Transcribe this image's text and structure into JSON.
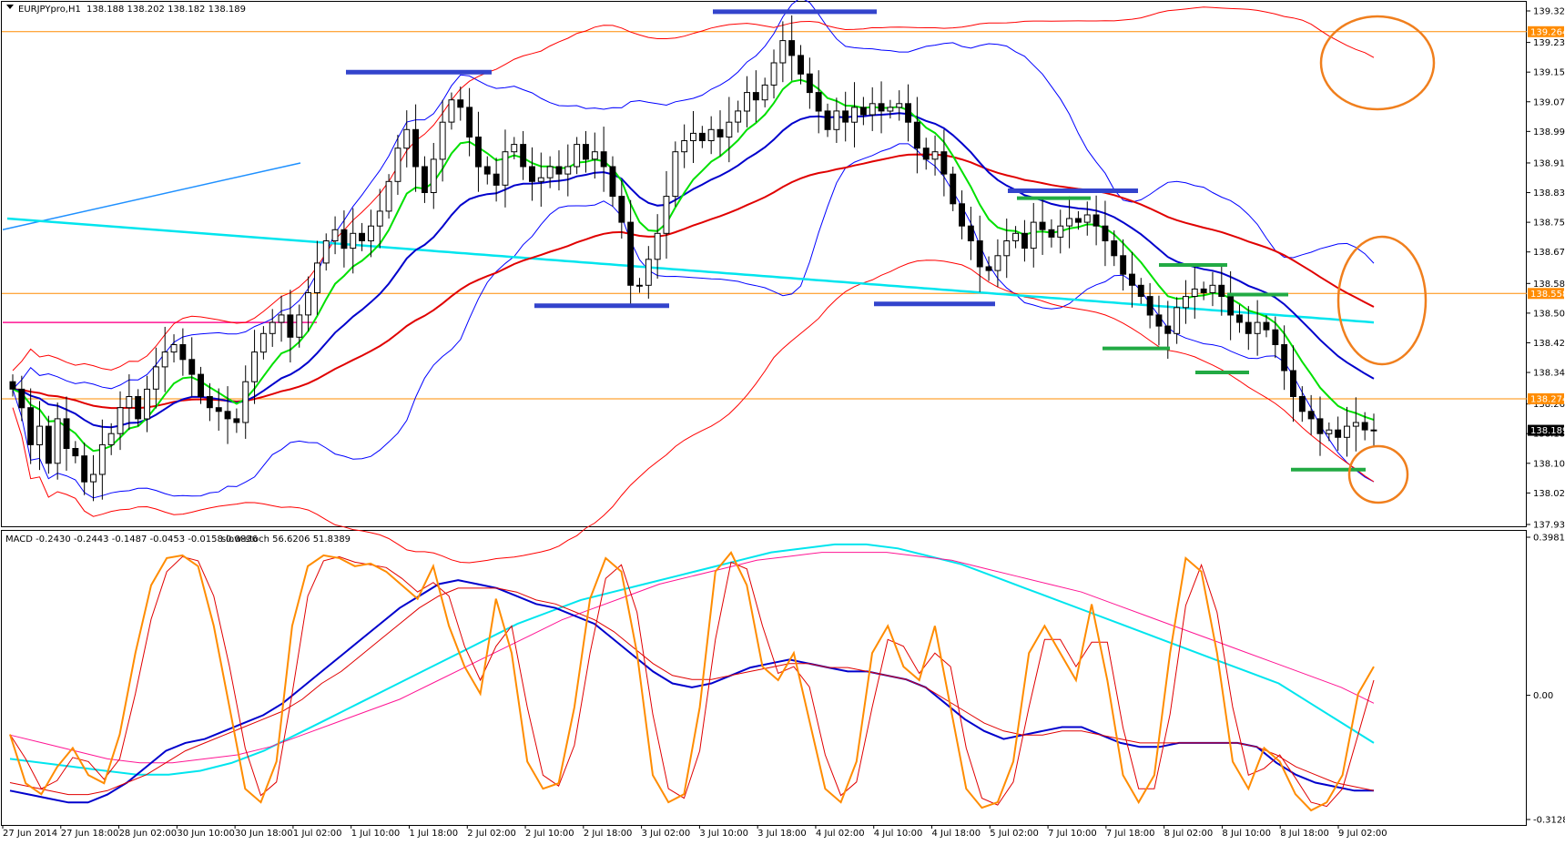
{
  "header": {
    "symbol_label": "EURJPYpro,H1",
    "ohlc": "138.188 138.202 138.182 138.189",
    "macd_label": "MACD -0.2430 -0.2443 -0.1487 -0.0453 -0.0158 0.0836",
    "stoch_label": "slow-stoch 56.6206 51.8389"
  },
  "colors": {
    "bg": "#ffffff",
    "grid_frame": "#000000",
    "candle": "#000000",
    "ema_fast": "#00e000",
    "ema_mid": "#0000cc",
    "ema_slow": "#e00000",
    "sma_long": "#00e5ee",
    "bollinger_inner": "#0000ff",
    "bollinger_outer": "#ff0000",
    "trendline": "#1e90ff",
    "magenta_line": "#ff1493",
    "hline": "#ff8c00",
    "resist_bar": "#3344cc",
    "support_bar": "#22aa44",
    "circle": "#f07f1d",
    "macd_main": "#0000cc",
    "macd_signal": "#e00000",
    "macd_slow": "#00e5ee",
    "macd_slow_sig": "#ff1493",
    "stoch_main": "#ff8c00",
    "stoch_sig": "#e00000"
  },
  "chart_data": {
    "type": "candlestick",
    "price_axis": {
      "ylim": [
        137.935,
        139.32
      ],
      "ticks": [
        "139.320",
        "139.235",
        "139.155",
        "139.075",
        "138.995",
        "138.910",
        "138.830",
        "138.750",
        "138.670",
        "138.585",
        "138.505",
        "138.425",
        "138.345",
        "138.260",
        "138.180",
        "138.100",
        "138.020",
        "137.935"
      ]
    },
    "price_labels": [
      {
        "text": "139.264",
        "value": 139.264,
        "style": "hline"
      },
      {
        "text": "138.558",
        "value": 138.558,
        "style": "hline"
      },
      {
        "text": "138.274",
        "value": 138.274,
        "style": "hline"
      },
      {
        "text": "138.189",
        "value": 138.189,
        "style": "current"
      }
    ],
    "horizontal_lines": [
      139.264,
      138.558,
      138.274
    ],
    "x_ticks": [
      "27 Jun 2014",
      "27 Jun 18:00",
      "28 Jun 02:00",
      "30 Jun 10:00",
      "30 Jun 18:00",
      "1 Jul 02:00",
      "1 Jul 10:00",
      "1 Jul 18:00",
      "2 Jul 02:00",
      "2 Jul 10:00",
      "2 Jul 18:00",
      "3 Jul 02:00",
      "3 Jul 10:00",
      "3 Jul 18:00",
      "4 Jul 02:00",
      "4 Jul 10:00",
      "4 Jul 18:00",
      "5 Jul 02:00",
      "7 Jul 10:00",
      "7 Jul 18:00",
      "8 Jul 02:00",
      "8 Jul 10:00",
      "8 Jul 18:00",
      "9 Jul 02:00"
    ],
    "close": [
      138.3,
      138.25,
      138.15,
      138.2,
      138.1,
      138.22,
      138.14,
      138.12,
      138.05,
      138.07,
      138.15,
      138.18,
      138.25,
      138.28,
      138.22,
      138.3,
      138.36,
      138.4,
      138.42,
      138.38,
      138.34,
      138.28,
      138.25,
      138.24,
      138.22,
      138.21,
      138.32,
      138.4,
      138.45,
      138.48,
      138.5,
      138.44,
      138.5,
      138.56,
      138.64,
      138.7,
      138.73,
      138.68,
      138.72,
      138.7,
      138.74,
      138.78,
      138.86,
      138.95,
      139.0,
      138.9,
      138.83,
      138.92,
      139.02,
      139.08,
      139.06,
      138.98,
      138.9,
      138.88,
      138.85,
      138.94,
      138.96,
      138.9,
      138.86,
      138.87,
      138.9,
      138.88,
      138.9,
      138.96,
      138.92,
      138.94,
      138.9,
      138.82,
      138.75,
      138.58,
      138.58,
      138.65,
      138.72,
      138.82,
      138.94,
      138.97,
      138.99,
      138.97,
      139.0,
      138.98,
      139.02,
      139.05,
      139.1,
      139.08,
      139.12,
      139.18,
      139.24,
      139.2,
      139.15,
      139.1,
      139.05,
      139.0,
      139.05,
      139.02,
      139.06,
      139.04,
      139.07,
      139.05,
      139.06,
      139.07,
      139.02,
      138.95,
      138.92,
      138.94,
      138.88,
      138.8,
      138.74,
      138.7,
      138.63,
      138.62,
      138.66,
      138.7,
      138.72,
      138.68,
      138.75,
      138.73,
      138.71,
      138.74,
      138.76,
      138.75,
      138.77,
      138.74,
      138.7,
      138.66,
      138.61,
      138.58,
      138.55,
      138.5,
      138.47,
      138.45,
      138.52,
      138.55,
      138.57,
      138.56,
      138.58,
      138.55,
      138.5,
      138.48,
      138.45,
      138.48,
      138.46,
      138.42,
      138.35,
      138.28,
      138.24,
      138.22,
      138.18,
      138.19,
      138.17,
      138.2,
      138.21,
      138.19,
      138.189
    ],
    "macd_axis": {
      "ylim": [
        -0.3128,
        0.3981
      ],
      "ticks": [
        "0.3981",
        "0.00",
        "-0.3128"
      ]
    },
    "macd": [
      -0.24,
      -0.25,
      -0.26,
      -0.27,
      -0.27,
      -0.25,
      -0.22,
      -0.18,
      -0.14,
      -0.12,
      -0.11,
      -0.09,
      -0.07,
      -0.05,
      -0.02,
      0.02,
      0.06,
      0.1,
      0.14,
      0.18,
      0.22,
      0.25,
      0.28,
      0.29,
      0.28,
      0.27,
      0.25,
      0.23,
      0.22,
      0.2,
      0.18,
      0.14,
      0.1,
      0.06,
      0.03,
      0.02,
      0.03,
      0.05,
      0.07,
      0.08,
      0.09,
      0.08,
      0.07,
      0.06,
      0.06,
      0.05,
      0.04,
      0.02,
      -0.02,
      -0.06,
      -0.09,
      -0.11,
      -0.1,
      -0.09,
      -0.08,
      -0.08,
      -0.1,
      -0.12,
      -0.13,
      -0.13,
      -0.12,
      -0.12,
      -0.12,
      -0.12,
      -0.13,
      -0.17,
      -0.2,
      -0.22,
      -0.23,
      -0.24,
      -0.24
    ],
    "macd_signal": [
      -0.22,
      -0.23,
      -0.24,
      -0.25,
      -0.25,
      -0.24,
      -0.22,
      -0.2,
      -0.17,
      -0.14,
      -0.12,
      -0.1,
      -0.08,
      -0.06,
      -0.04,
      -0.01,
      0.03,
      0.06,
      0.1,
      0.14,
      0.18,
      0.22,
      0.25,
      0.27,
      0.27,
      0.27,
      0.26,
      0.24,
      0.23,
      0.21,
      0.19,
      0.16,
      0.12,
      0.08,
      0.05,
      0.04,
      0.04,
      0.05,
      0.06,
      0.07,
      0.08,
      0.08,
      0.07,
      0.07,
      0.06,
      0.05,
      0.04,
      0.02,
      -0.01,
      -0.04,
      -0.07,
      -0.09,
      -0.1,
      -0.1,
      -0.09,
      -0.09,
      -0.1,
      -0.11,
      -0.12,
      -0.12,
      -0.12,
      -0.12,
      -0.12,
      -0.12,
      -0.13,
      -0.15,
      -0.18,
      -0.2,
      -0.22,
      -0.23,
      -0.24
    ],
    "macd_slow": [
      -0.16,
      -0.17,
      -0.18,
      -0.19,
      -0.2,
      -0.2,
      -0.19,
      -0.17,
      -0.14,
      -0.1,
      -0.06,
      -0.02,
      0.02,
      0.06,
      0.1,
      0.14,
      0.18,
      0.21,
      0.24,
      0.26,
      0.28,
      0.3,
      0.32,
      0.34,
      0.36,
      0.37,
      0.38,
      0.38,
      0.37,
      0.35,
      0.33,
      0.3,
      0.27,
      0.24,
      0.21,
      0.18,
      0.15,
      0.12,
      0.09,
      0.06,
      0.03,
      -0.02,
      -0.07,
      -0.12
    ],
    "macd_slow_sig": [
      -0.1,
      -0.12,
      -0.14,
      -0.16,
      -0.17,
      -0.17,
      -0.16,
      -0.15,
      -0.13,
      -0.1,
      -0.07,
      -0.04,
      -0.01,
      0.03,
      0.07,
      0.11,
      0.15,
      0.19,
      0.22,
      0.25,
      0.28,
      0.3,
      0.32,
      0.34,
      0.35,
      0.36,
      0.36,
      0.36,
      0.35,
      0.34,
      0.32,
      0.3,
      0.28,
      0.26,
      0.23,
      0.2,
      0.17,
      0.14,
      0.11,
      0.08,
      0.05,
      0.02,
      -0.02
    ],
    "stoch": [
      30,
      12,
      8,
      18,
      25,
      15,
      12,
      30,
      60,
      85,
      95,
      96,
      92,
      70,
      40,
      10,
      5,
      20,
      70,
      92,
      96,
      95,
      92,
      93,
      90,
      85,
      80,
      92,
      70,
      55,
      45,
      80,
      60,
      20,
      10,
      12,
      40,
      80,
      95,
      90,
      60,
      15,
      5,
      8,
      40,
      90,
      97,
      85,
      55,
      50,
      60,
      35,
      10,
      5,
      20,
      60,
      70,
      55,
      50,
      70,
      40,
      10,
      3,
      5,
      20,
      60,
      70,
      60,
      50,
      78,
      50,
      15,
      5,
      15,
      60,
      95,
      90,
      60,
      20,
      10,
      25,
      20,
      8,
      2,
      5,
      15,
      45,
      55
    ]
  }
}
